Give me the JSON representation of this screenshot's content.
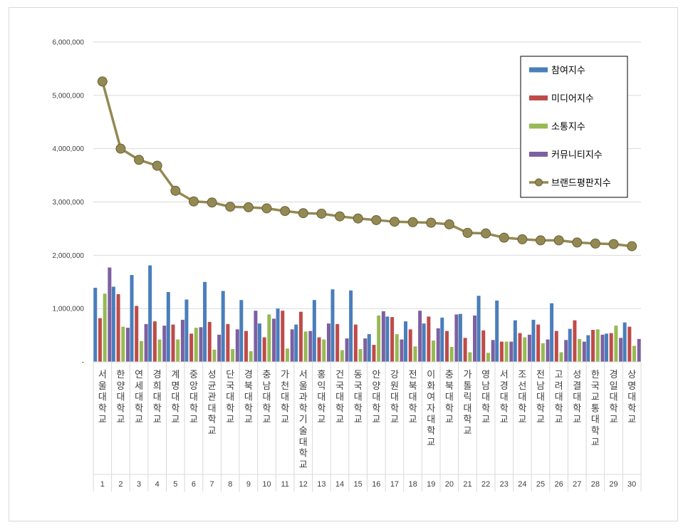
{
  "chart_data": {
    "type": "bar",
    "categories": [
      "서울대학교",
      "한양대학교",
      "연세대학교",
      "경희대학교",
      "계명대학교",
      "중앙대학교",
      "성균관대학교",
      "단국대학교",
      "경북대학교",
      "충남대학교",
      "가천대학교",
      "서울과학기술대학교",
      "홍익대학교",
      "건국대학교",
      "동국대학교",
      "안양대학교",
      "강원대학교",
      "전북대학교",
      "이화여자대학교",
      "충북대학교",
      "가톨릭대학교",
      "영남대학교",
      "서경대학교",
      "조선대학교",
      "전남대학교",
      "고려대학교",
      "성결대학교",
      "한국교통대학교",
      "경일대학교",
      "상명대학교"
    ],
    "ranks": [
      "1",
      "2",
      "3",
      "4",
      "5",
      "6",
      "7",
      "8",
      "9",
      "10",
      "11",
      "12",
      "13",
      "14",
      "15",
      "16",
      "17",
      "18",
      "19",
      "20",
      "21",
      "22",
      "23",
      "24",
      "25",
      "26",
      "27",
      "28",
      "29",
      "30"
    ],
    "ylim": [
      0,
      6000000
    ],
    "yticks": [
      "-",
      "1,000,000",
      "2,000,000",
      "3,000,000",
      "4,000,000",
      "5,000,000",
      "6,000,000"
    ],
    "ytick_values": [
      0,
      1000000,
      2000000,
      3000000,
      4000000,
      5000000,
      6000000
    ],
    "grid": true,
    "legend_position": "top-right",
    "series": [
      {
        "name": "참여지수",
        "color": "#4a7ebb",
        "kind": "bar",
        "values": [
          1390000,
          1410000,
          1630000,
          1810000,
          1310000,
          1170000,
          1500000,
          1330000,
          1160000,
          720000,
          1000000,
          700000,
          1160000,
          1360000,
          1340000,
          520000,
          850000,
          760000,
          720000,
          830000,
          900000,
          1240000,
          1150000,
          780000,
          790000,
          1100000,
          620000,
          500000,
          530000,
          740000
        ]
      },
      {
        "name": "미디어지수",
        "color": "#be4b48",
        "kind": "bar",
        "values": [
          820000,
          1270000,
          1050000,
          760000,
          700000,
          530000,
          750000,
          710000,
          580000,
          460000,
          960000,
          940000,
          460000,
          710000,
          700000,
          320000,
          840000,
          610000,
          850000,
          580000,
          450000,
          590000,
          380000,
          540000,
          700000,
          580000,
          780000,
          600000,
          540000,
          660000
        ]
      },
      {
        "name": "소통지수",
        "color": "#98b954",
        "kind": "bar",
        "values": [
          1280000,
          660000,
          390000,
          420000,
          420000,
          640000,
          230000,
          240000,
          200000,
          890000,
          250000,
          570000,
          420000,
          220000,
          240000,
          870000,
          520000,
          290000,
          400000,
          280000,
          180000,
          170000,
          380000,
          460000,
          350000,
          180000,
          430000,
          610000,
          680000,
          300000
        ]
      },
      {
        "name": "커뮤니티지수",
        "color": "#7d60a0",
        "kind": "bar",
        "values": [
          1770000,
          640000,
          710000,
          680000,
          790000,
          650000,
          510000,
          610000,
          960000,
          810000,
          610000,
          580000,
          720000,
          440000,
          440000,
          950000,
          420000,
          960000,
          630000,
          890000,
          870000,
          410000,
          380000,
          510000,
          420000,
          410000,
          380000,
          510000,
          450000,
          430000
        ]
      },
      {
        "name": "브랜드평판지수",
        "color": "#938953",
        "kind": "line",
        "values": [
          5260000,
          4000000,
          3790000,
          3680000,
          3210000,
          3010000,
          2990000,
          2910000,
          2900000,
          2880000,
          2830000,
          2790000,
          2780000,
          2730000,
          2690000,
          2660000,
          2630000,
          2620000,
          2610000,
          2580000,
          2420000,
          2410000,
          2330000,
          2300000,
          2280000,
          2280000,
          2240000,
          2220000,
          2210000,
          2170000
        ]
      }
    ]
  }
}
